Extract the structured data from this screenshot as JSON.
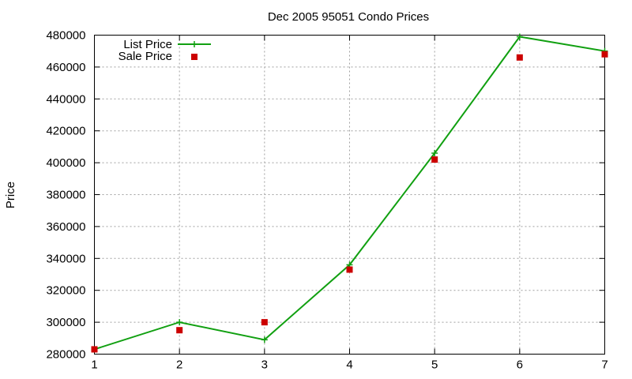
{
  "chart_data": {
    "type": "line",
    "title": "Dec 2005 95051 Condo Prices",
    "xlabel": "",
    "ylabel": "Price",
    "xlim": [
      1,
      7
    ],
    "ylim": [
      280000,
      480000
    ],
    "x_ticks": [
      "1",
      "2",
      "3",
      "4",
      "5",
      "6",
      "7"
    ],
    "y_ticks": [
      "280000",
      "300000",
      "320000",
      "340000",
      "360000",
      "380000",
      "400000",
      "420000",
      "440000",
      "460000",
      "480000"
    ],
    "grid": true,
    "legend_position": "top-left",
    "x": [
      1,
      2,
      3,
      4,
      5,
      6,
      7
    ],
    "series": [
      {
        "name": "List Price",
        "style": "lines+crosses",
        "color": "#11a011",
        "values": [
          283000,
          300000,
          289000,
          336000,
          406000,
          479000,
          470000
        ]
      },
      {
        "name": "Sale Price",
        "style": "squares",
        "color": "#cc0000",
        "values": [
          283000,
          295000,
          300000,
          333000,
          402000,
          466000,
          468000
        ]
      }
    ]
  }
}
